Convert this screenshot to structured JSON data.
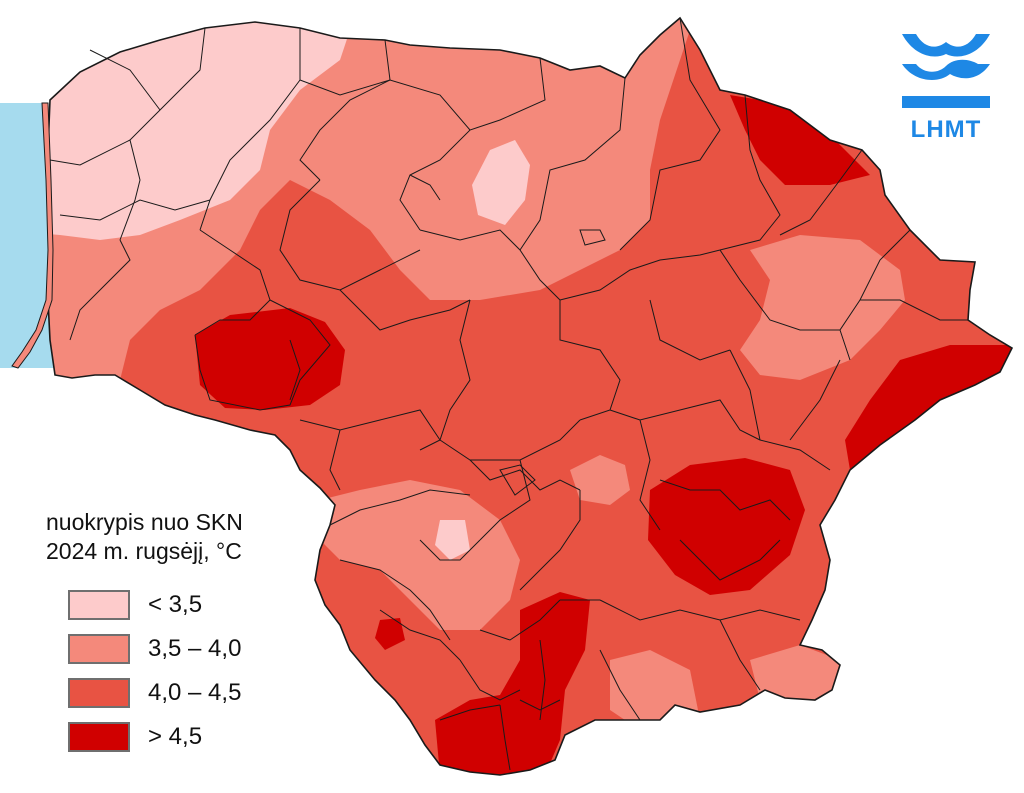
{
  "legend": {
    "title_line1": "nuokrypis nuo SKN",
    "title_line2": "2024 m. rugsėjį, °C",
    "items": [
      {
        "label": "< 3,5",
        "color": "#fdcbcb"
      },
      {
        "label": "3,5 – 4,0",
        "color": "#f4897b"
      },
      {
        "label": "4,0 – 4,5",
        "color": "#e85343"
      },
      {
        "label": "> 4,5",
        "color": "#d00000"
      }
    ]
  },
  "logo": {
    "text": "LHMT",
    "color": "#1e88e5"
  },
  "map": {
    "sea_color": "#a6dbee",
    "boundary_color": "#1a1a1a"
  }
}
